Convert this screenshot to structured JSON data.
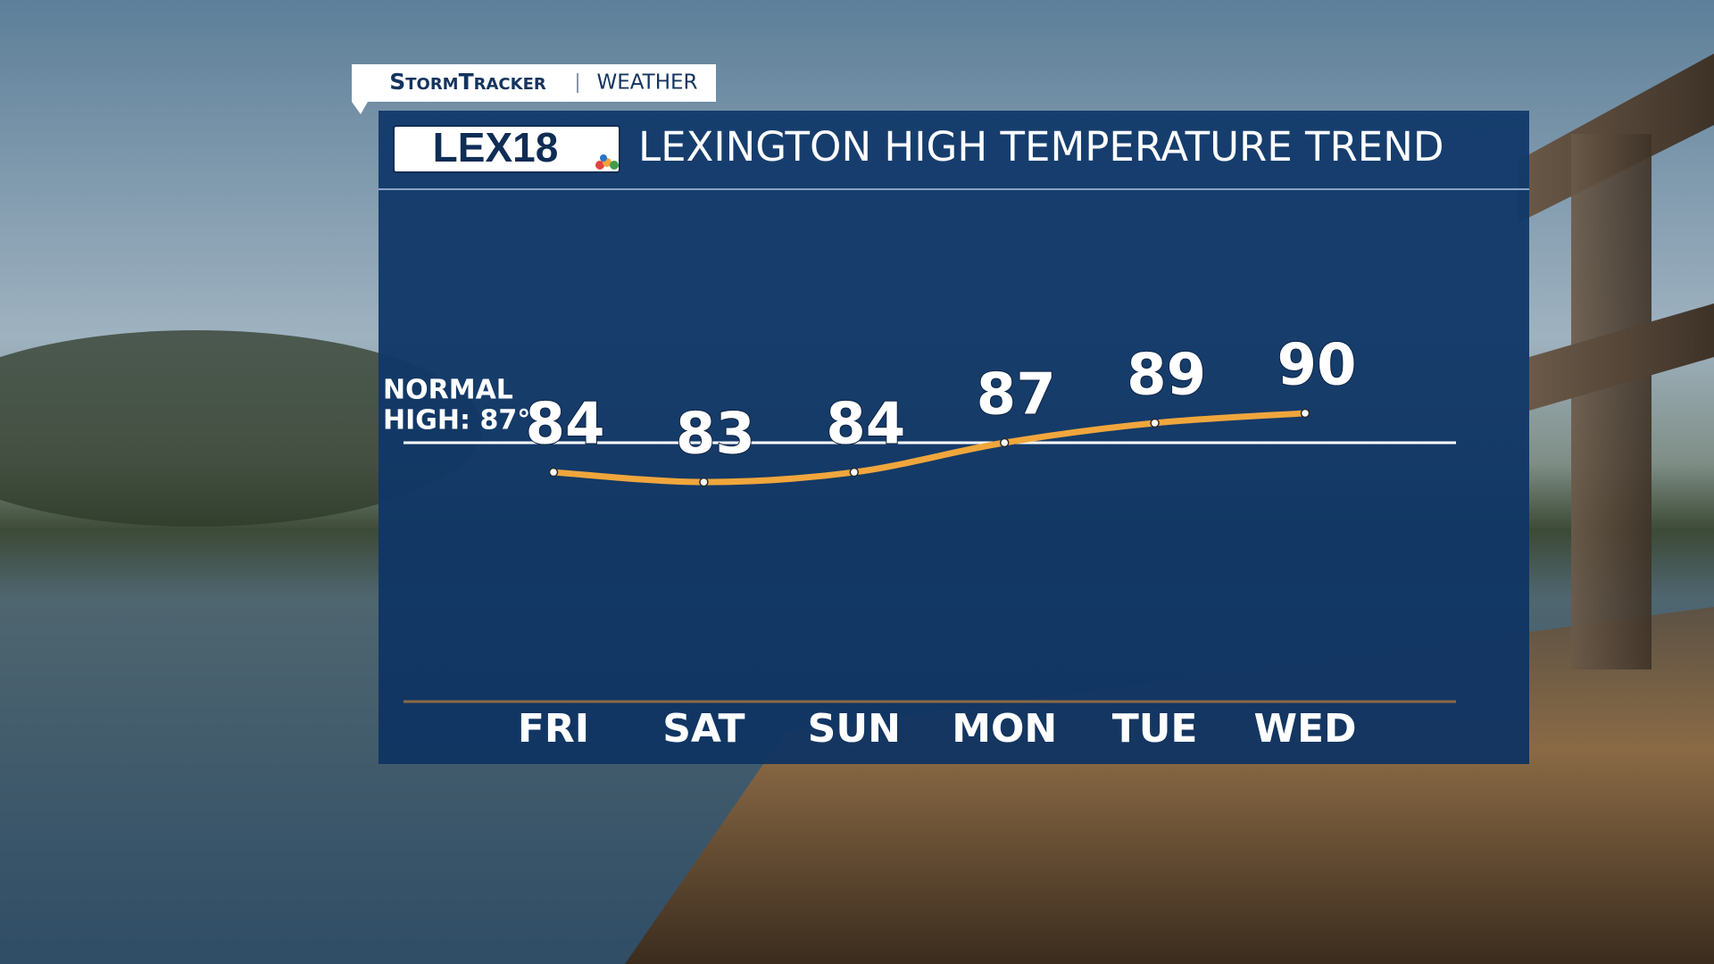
{
  "header": {
    "brand": "StormTracker",
    "section": "WEATHER",
    "logo": "LEX18"
  },
  "chart_data": {
    "type": "line",
    "title": "LEXINGTON HIGH TEMPERATURE TREND",
    "categories": [
      "FRI",
      "SAT",
      "SUN",
      "MON",
      "TUE",
      "WED"
    ],
    "values": [
      84,
      83,
      84,
      87,
      89,
      90
    ],
    "color": "#f0a63c",
    "normal_high": {
      "label_lines": [
        "NORMAL",
        "HIGH: 87°"
      ],
      "value": 87
    }
  }
}
